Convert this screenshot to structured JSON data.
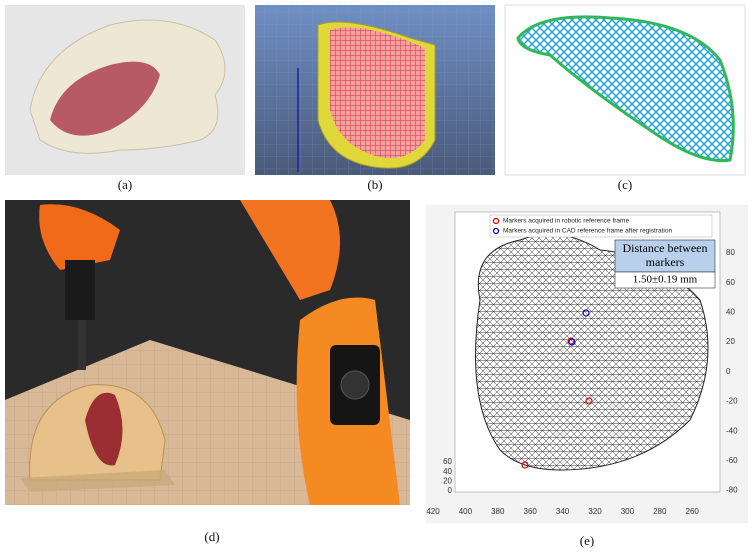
{
  "panels": [
    {
      "label": "(a)"
    },
    {
      "label": "(b)"
    },
    {
      "label": "(c)"
    },
    {
      "label": "(d)"
    },
    {
      "label": "(e)"
    }
  ],
  "plot": {
    "legend": [
      "Markers acquired in robotic reference frame",
      "Markers acquired in CAD reference frame after registration"
    ],
    "annotation": {
      "title_lines": [
        "Distance between",
        "markers"
      ],
      "value": "1.50±0.19 mm"
    },
    "right_ticks": [
      80,
      60,
      40,
      20,
      0,
      -20,
      -40,
      -60,
      -80
    ],
    "bottom_ticks": [
      420,
      400,
      380,
      360,
      340,
      320,
      300,
      280,
      260
    ],
    "left_ticks": [
      60,
      40,
      20,
      0
    ]
  }
}
